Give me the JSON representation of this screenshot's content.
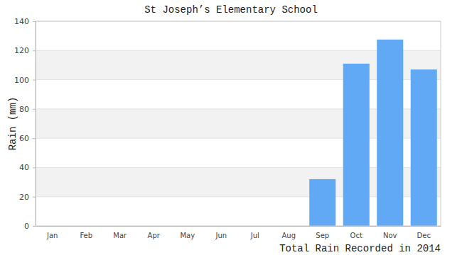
{
  "chart_data": {
    "type": "bar",
    "title": "St Joseph’s Elementary School",
    "x_label": "Total Rain Recorded in 2014",
    "y_label": "Rain (mm)",
    "categories": [
      "Jan",
      "Feb",
      "Mar",
      "Apr",
      "May",
      "Jun",
      "Jul",
      "Aug",
      "Sep",
      "Oct",
      "Nov",
      "Dec"
    ],
    "values": [
      0,
      0,
      0,
      0,
      0,
      0,
      0,
      0,
      32,
      111,
      127.5,
      107
    ],
    "color": "#61a8f5",
    "ylim": [
      0,
      140
    ],
    "yticks": [
      0,
      20,
      40,
      60,
      80,
      100,
      120,
      140
    ],
    "grid": true
  }
}
